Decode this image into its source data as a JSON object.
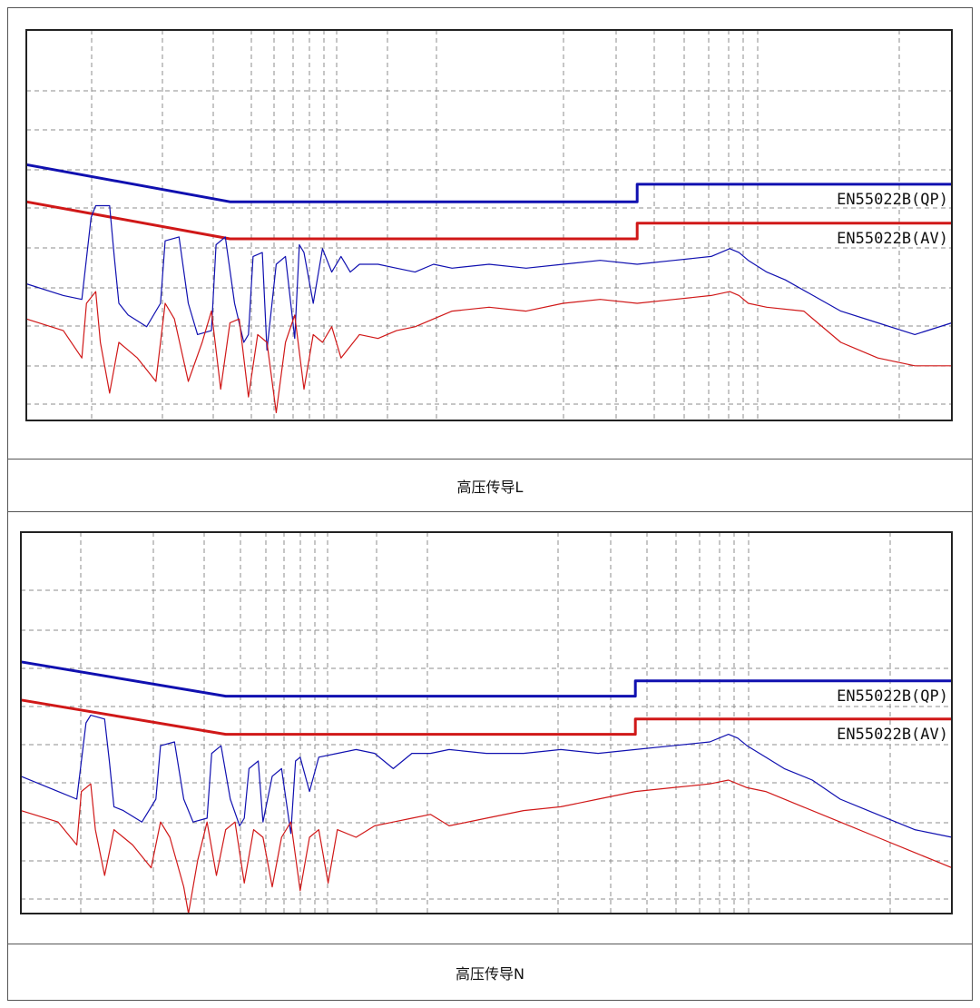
{
  "chart_data": [
    {
      "type": "line",
      "caption": "高压传导L",
      "limit_label_qp": "EN55022B(QP)",
      "limit_label_av": "EN55022B(AV)",
      "colors": {
        "qp": "#1010b0",
        "av": "#d01818",
        "grid": "#8c8c8c",
        "frame": "#222222"
      },
      "grid": true,
      "xlim": [
        0,
        1
      ],
      "ylim": [
        0,
        1
      ],
      "series": [
        {
          "key": "qp_limit",
          "color": "#1010b0",
          "width": 3,
          "x": [
            0,
            0.22,
            0.66,
            0.66,
            1.0
          ],
          "y": [
            0.655,
            0.56,
            0.56,
            0.605,
            0.605
          ]
        },
        {
          "key": "av_limit",
          "color": "#d01818",
          "width": 3,
          "x": [
            0,
            0.22,
            0.66,
            0.66,
            1.0
          ],
          "y": [
            0.56,
            0.465,
            0.465,
            0.505,
            0.505
          ]
        },
        {
          "key": "qp_trace",
          "color": "#1010b0",
          "width": 1.2,
          "x": [
            0,
            0.04,
            0.06,
            0.07,
            0.075,
            0.09,
            0.095,
            0.1,
            0.11,
            0.13,
            0.145,
            0.15,
            0.165,
            0.175,
            0.185,
            0.2,
            0.205,
            0.215,
            0.225,
            0.235,
            0.24,
            0.245,
            0.255,
            0.26,
            0.27,
            0.28,
            0.29,
            0.295,
            0.3,
            0.31,
            0.32,
            0.33,
            0.34,
            0.35,
            0.36,
            0.38,
            0.4,
            0.42,
            0.44,
            0.46,
            0.5,
            0.54,
            0.58,
            0.62,
            0.66,
            0.7,
            0.74,
            0.76,
            0.77,
            0.78,
            0.8,
            0.82,
            0.85,
            0.88,
            0.92,
            0.96,
            1.0
          ],
          "y": [
            0.35,
            0.32,
            0.31,
            0.52,
            0.55,
            0.55,
            0.42,
            0.3,
            0.27,
            0.24,
            0.3,
            0.46,
            0.47,
            0.3,
            0.22,
            0.23,
            0.45,
            0.47,
            0.3,
            0.2,
            0.22,
            0.42,
            0.43,
            0.18,
            0.4,
            0.42,
            0.21,
            0.45,
            0.43,
            0.3,
            0.44,
            0.38,
            0.42,
            0.38,
            0.4,
            0.4,
            0.39,
            0.38,
            0.4,
            0.39,
            0.4,
            0.39,
            0.4,
            0.41,
            0.4,
            0.41,
            0.42,
            0.44,
            0.43,
            0.41,
            0.38,
            0.36,
            0.32,
            0.28,
            0.25,
            0.22,
            0.25
          ]
        },
        {
          "key": "av_trace",
          "color": "#d01818",
          "width": 1.2,
          "x": [
            0,
            0.04,
            0.06,
            0.065,
            0.075,
            0.08,
            0.09,
            0.1,
            0.11,
            0.12,
            0.14,
            0.15,
            0.16,
            0.175,
            0.19,
            0.2,
            0.21,
            0.22,
            0.23,
            0.24,
            0.25,
            0.26,
            0.27,
            0.28,
            0.29,
            0.3,
            0.31,
            0.32,
            0.33,
            0.34,
            0.36,
            0.38,
            0.4,
            0.42,
            0.44,
            0.46,
            0.5,
            0.54,
            0.58,
            0.62,
            0.66,
            0.7,
            0.74,
            0.76,
            0.77,
            0.78,
            0.8,
            0.84,
            0.88,
            0.92,
            0.96,
            1.0
          ],
          "y": [
            0.26,
            0.23,
            0.16,
            0.3,
            0.33,
            0.2,
            0.07,
            0.2,
            0.18,
            0.16,
            0.1,
            0.3,
            0.26,
            0.1,
            0.2,
            0.28,
            0.08,
            0.25,
            0.26,
            0.06,
            0.22,
            0.2,
            0.02,
            0.2,
            0.27,
            0.08,
            0.22,
            0.2,
            0.24,
            0.16,
            0.22,
            0.21,
            0.23,
            0.24,
            0.26,
            0.28,
            0.29,
            0.28,
            0.3,
            0.31,
            0.3,
            0.31,
            0.32,
            0.33,
            0.32,
            0.3,
            0.29,
            0.28,
            0.2,
            0.16,
            0.14,
            0.14
          ]
        }
      ]
    },
    {
      "type": "line",
      "caption": "高压传导N",
      "limit_label_qp": "EN55022B(QP)",
      "limit_label_av": "EN55022B(AV)",
      "colors": {
        "qp": "#1010b0",
        "av": "#d01818",
        "grid": "#8c8c8c",
        "frame": "#222222"
      },
      "grid": true,
      "xlim": [
        0,
        1
      ],
      "ylim": [
        0,
        1
      ],
      "series": [
        {
          "key": "qp_limit",
          "color": "#1010b0",
          "width": 3,
          "x": [
            0,
            0.22,
            0.66,
            0.66,
            1.0
          ],
          "y": [
            0.66,
            0.57,
            0.57,
            0.61,
            0.61
          ]
        },
        {
          "key": "av_limit",
          "color": "#d01818",
          "width": 3,
          "x": [
            0,
            0.22,
            0.66,
            0.66,
            1.0
          ],
          "y": [
            0.56,
            0.47,
            0.47,
            0.51,
            0.51
          ]
        },
        {
          "key": "qp_trace",
          "color": "#1010b0",
          "width": 1.2,
          "x": [
            0,
            0.04,
            0.06,
            0.07,
            0.075,
            0.09,
            0.095,
            0.1,
            0.11,
            0.13,
            0.145,
            0.15,
            0.165,
            0.175,
            0.185,
            0.2,
            0.205,
            0.215,
            0.225,
            0.235,
            0.24,
            0.245,
            0.255,
            0.26,
            0.27,
            0.28,
            0.29,
            0.295,
            0.3,
            0.31,
            0.32,
            0.34,
            0.36,
            0.38,
            0.4,
            0.42,
            0.44,
            0.46,
            0.5,
            0.54,
            0.58,
            0.62,
            0.66,
            0.7,
            0.74,
            0.76,
            0.77,
            0.78,
            0.8,
            0.82,
            0.85,
            0.88,
            0.92,
            0.96,
            1.0
          ],
          "y": [
            0.36,
            0.32,
            0.3,
            0.5,
            0.52,
            0.51,
            0.4,
            0.28,
            0.27,
            0.24,
            0.3,
            0.44,
            0.45,
            0.3,
            0.24,
            0.25,
            0.42,
            0.44,
            0.3,
            0.23,
            0.25,
            0.38,
            0.4,
            0.24,
            0.36,
            0.38,
            0.21,
            0.4,
            0.41,
            0.32,
            0.41,
            0.42,
            0.43,
            0.42,
            0.38,
            0.42,
            0.42,
            0.43,
            0.42,
            0.42,
            0.43,
            0.42,
            0.43,
            0.44,
            0.45,
            0.47,
            0.46,
            0.44,
            0.41,
            0.38,
            0.35,
            0.3,
            0.26,
            0.22,
            0.2
          ]
        },
        {
          "key": "av_trace",
          "color": "#d01818",
          "width": 1.2,
          "x": [
            0,
            0.04,
            0.06,
            0.065,
            0.075,
            0.08,
            0.09,
            0.1,
            0.11,
            0.12,
            0.14,
            0.15,
            0.16,
            0.175,
            0.18,
            0.19,
            0.2,
            0.21,
            0.22,
            0.23,
            0.24,
            0.25,
            0.26,
            0.27,
            0.28,
            0.29,
            0.3,
            0.31,
            0.32,
            0.33,
            0.34,
            0.36,
            0.38,
            0.4,
            0.42,
            0.44,
            0.46,
            0.5,
            0.54,
            0.58,
            0.62,
            0.66,
            0.7,
            0.74,
            0.76,
            0.77,
            0.78,
            0.8,
            0.84,
            0.88,
            0.92,
            0.96,
            1.0
          ],
          "y": [
            0.27,
            0.24,
            0.18,
            0.32,
            0.34,
            0.22,
            0.1,
            0.22,
            0.2,
            0.18,
            0.12,
            0.24,
            0.2,
            0.07,
            0.0,
            0.14,
            0.24,
            0.1,
            0.22,
            0.24,
            0.08,
            0.22,
            0.2,
            0.07,
            0.2,
            0.24,
            0.06,
            0.2,
            0.22,
            0.08,
            0.22,
            0.2,
            0.23,
            0.24,
            0.25,
            0.26,
            0.23,
            0.25,
            0.27,
            0.28,
            0.3,
            0.32,
            0.33,
            0.34,
            0.35,
            0.34,
            0.33,
            0.32,
            0.28,
            0.24,
            0.2,
            0.16,
            0.12
          ]
        }
      ]
    }
  ]
}
